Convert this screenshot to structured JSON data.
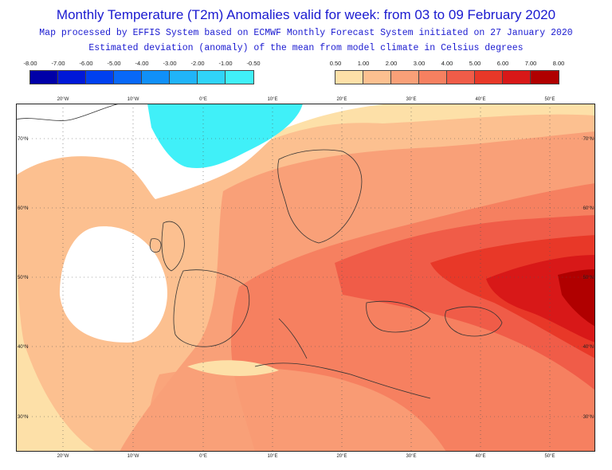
{
  "title": "Monthly Temperature (T2m) Anomalies valid for week: from 03 to 09 February 2020",
  "subtitle1": "Map processed by EFFIS System based on ECMWF Monthly Forecast System initiated on 27 January 2020",
  "subtitle2": "Estimated deviation (anomaly) of the mean from model climate in Celsius degrees",
  "legend_negative": {
    "ticks": [
      "-8.00",
      "-7.00",
      "-6.00",
      "-5.00",
      "-4.00",
      "-3.00",
      "-2.00",
      "-1.00",
      "-0.50"
    ],
    "colors": [
      "#0000a8",
      "#0018d8",
      "#0040f0",
      "#0868f8",
      "#1090f8",
      "#20b4f8",
      "#30d4f8",
      "#40f0f8"
    ]
  },
  "legend_positive": {
    "ticks": [
      "0.50",
      "1.00",
      "2.00",
      "3.00",
      "4.00",
      "5.00",
      "6.00",
      "7.00",
      "8.00"
    ],
    "colors": [
      "#fde0a8",
      "#fcc090",
      "#f9a078",
      "#f68060",
      "#f05c48",
      "#e83828",
      "#d81818",
      "#b00000"
    ]
  },
  "map": {
    "lon_labels": [
      "20°W",
      "10°W",
      "0°E",
      "10°E",
      "20°E",
      "30°E",
      "40°E",
      "50°E"
    ],
    "lat_labels": [
      "70°N",
      "60°N",
      "50°N",
      "40°N",
      "30°N"
    ]
  }
}
